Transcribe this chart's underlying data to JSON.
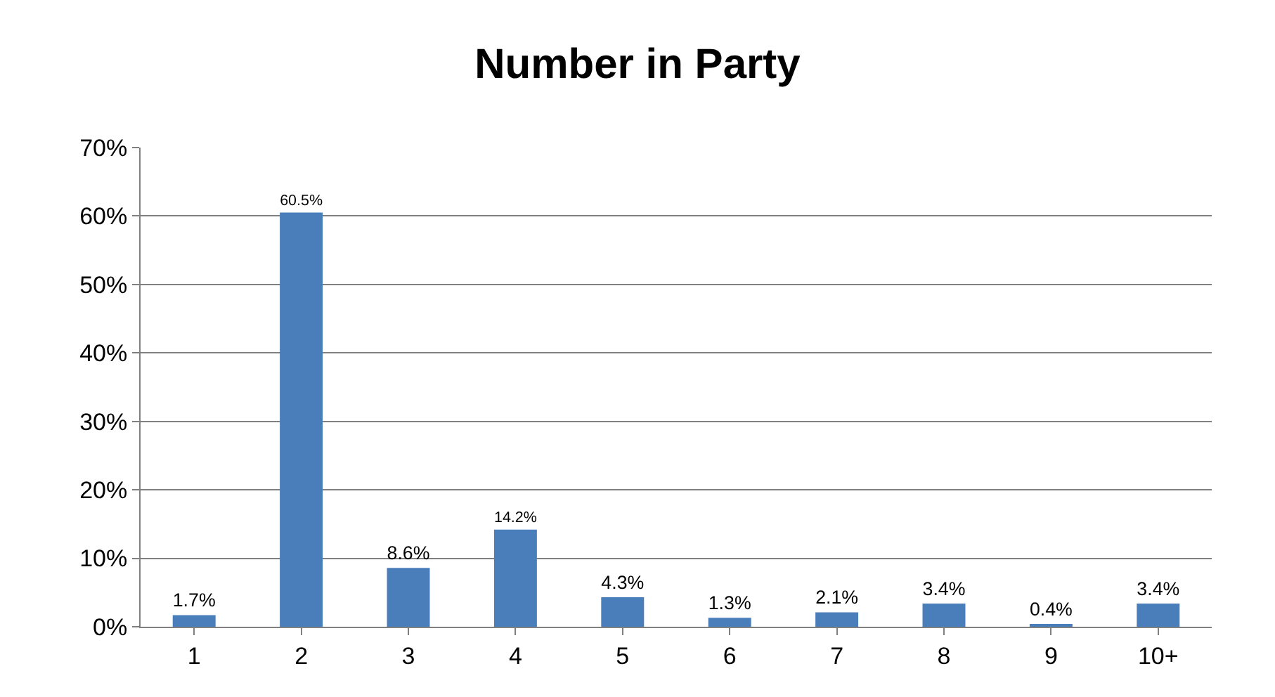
{
  "chart_data": {
    "type": "bar",
    "title": "Number in Party",
    "categories": [
      "1",
      "2",
      "3",
      "4",
      "5",
      "6",
      "7",
      "8",
      "9",
      "10+"
    ],
    "values": [
      1.7,
      60.5,
      8.6,
      14.2,
      4.3,
      1.3,
      2.1,
      3.4,
      0.4,
      3.4
    ],
    "value_labels": [
      "1.7%",
      "60.5%",
      "8.6%",
      "14.2%",
      "4.3%",
      "1.3%",
      "2.1%",
      "3.4%",
      "0.4%",
      "3.4%"
    ],
    "color": "#4a7ebb",
    "ylim": [
      0,
      70
    ],
    "yticks": [
      {
        "value": 0,
        "label": "0%"
      },
      {
        "value": 10,
        "label": "10%"
      },
      {
        "value": 20,
        "label": "20%"
      },
      {
        "value": 30,
        "label": "30%"
      },
      {
        "value": 40,
        "label": "40%"
      },
      {
        "value": 50,
        "label": "50%"
      },
      {
        "value": 60,
        "label": "60%"
      },
      {
        "value": 70,
        "label": "70%"
      }
    ],
    "grid": "y",
    "legend": false
  }
}
